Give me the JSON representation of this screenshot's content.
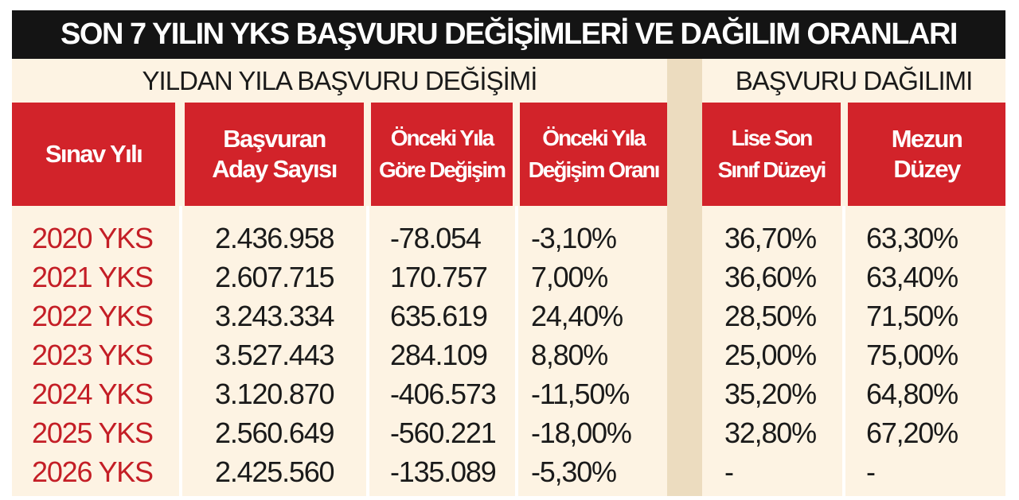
{
  "title": "SON 7 YILIN YKS BAŞVURU DEĞİŞİMLERİ VE DAĞILIM ORANLARI",
  "section_left": "YILDAN YILA BAŞVURU DEĞİŞİMİ",
  "section_right": "BAŞVURU DAĞILIMI",
  "headers": {
    "year": "Sınav Yılı",
    "applicants_1": "Başvuran",
    "applicants_2": "Aday Sayısı",
    "change_1": "Önceki Yıla",
    "change_2": "Göre Değişim",
    "rate_1": "Önceki Yıla",
    "rate_2": "Değişim Oranı",
    "hs_1": "Lise Son",
    "hs_2": "Sınıf Düzeyi",
    "grad_1": "Mezun",
    "grad_2": "Düzey"
  },
  "colors": {
    "title_bg": "#141414",
    "header_red": "#d2232a",
    "year_text": "#c41e26",
    "body_bg": "#fdf3e3",
    "gap_bg": "#ecdcbf"
  },
  "chart_data": {
    "type": "table",
    "title": "SON 7 YILIN YKS BAŞVURU DEĞİŞİMLERİ VE DAĞILIM ORANLARI",
    "columns": [
      "Sınav Yılı",
      "Başvuran Aday Sayısı",
      "Önceki Yıla Göre Değişim",
      "Önceki Yıla Değişim Oranı",
      "Lise Son Sınıf Düzeyi",
      "Mezun Düzey"
    ],
    "rows": [
      {
        "year": "2020 YKS",
        "applicants": "2.436.958",
        "change": "-78.054",
        "rate": "-3,10%",
        "hs": "36,70%",
        "grad": "63,30%"
      },
      {
        "year": "2021 YKS",
        "applicants": "2.607.715",
        "change": "170.757",
        "rate": "7,00%",
        "hs": "36,60%",
        "grad": "63,40%"
      },
      {
        "year": "2022 YKS",
        "applicants": "3.243.334",
        "change": "635.619",
        "rate": "24,40%",
        "hs": "28,50%",
        "grad": "71,50%"
      },
      {
        "year": "2023 YKS",
        "applicants": "3.527.443",
        "change": "284.109",
        "rate": "8,80%",
        "hs": "25,00%",
        "grad": "75,00%"
      },
      {
        "year": "2024 YKS",
        "applicants": "3.120.870",
        "change": "-406.573",
        "rate": "-11,50%",
        "hs": "35,20%",
        "grad": "64,80%"
      },
      {
        "year": "2025 YKS",
        "applicants": "2.560.649",
        "change": "-560.221",
        "rate": "-18,00%",
        "hs": "32,80%",
        "grad": "67,20%"
      },
      {
        "year": "2026 YKS",
        "applicants": "2.425.560",
        "change": "-135.089",
        "rate": "-5,30%",
        "hs": "-",
        "grad": "-"
      }
    ]
  }
}
